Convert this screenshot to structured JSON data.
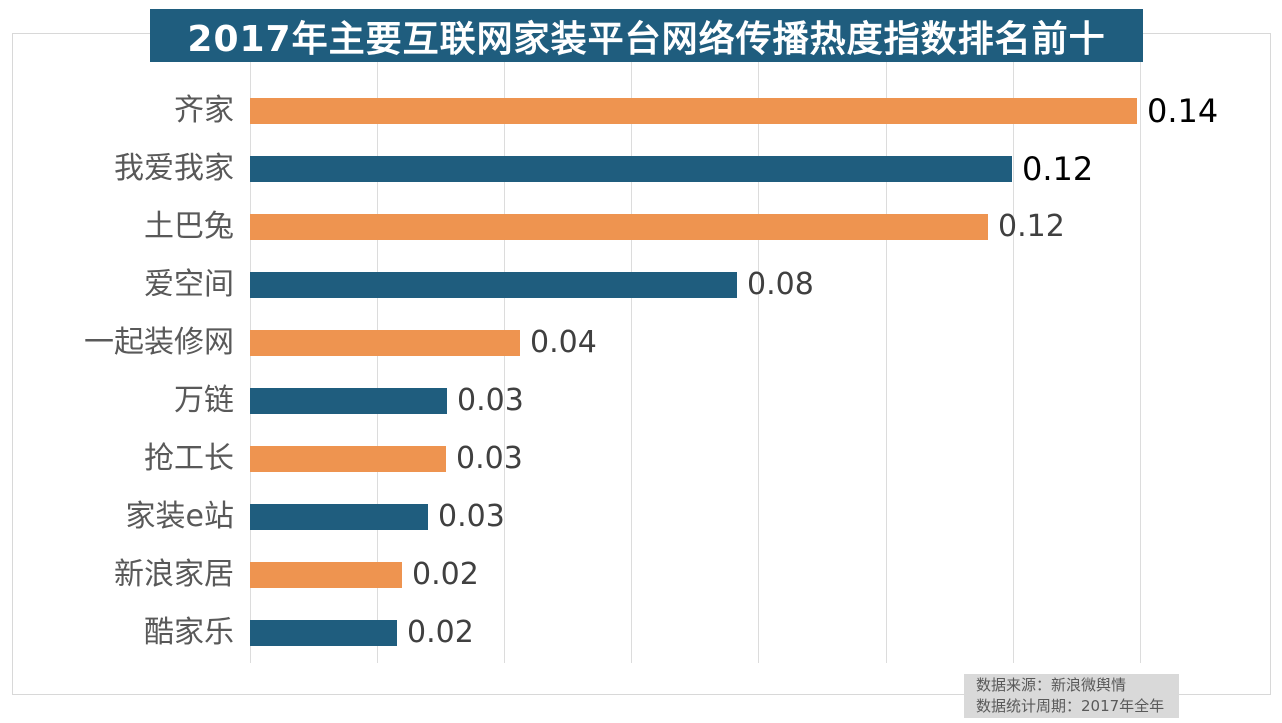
{
  "title": "2017年主要互联网家装平台网络传播热度指数排名前十",
  "chart_data": {
    "type": "bar",
    "orientation": "horizontal",
    "title": "2017年主要互联网家装平台网络传播热度指数排名前十",
    "categories": [
      "齐家",
      "我爱我家",
      "土巴兔",
      "爱空间",
      "一起装修网",
      "万链",
      "抢工长",
      "家装e站",
      "新浪家居",
      "酷家乐"
    ],
    "values": [
      0.14,
      0.12,
      0.12,
      0.08,
      0.04,
      0.03,
      0.03,
      0.03,
      0.02,
      0.02
    ],
    "values_precise": [
      0.1396,
      0.1199,
      0.1161,
      0.0766,
      0.0425,
      0.031,
      0.0309,
      0.028,
      0.0239,
      0.0231
    ],
    "value_labels": [
      "0.14",
      "0.12",
      "0.12",
      "0.08",
      "0.04",
      "0.03",
      "0.03",
      "0.03",
      "0.02",
      "0.02"
    ],
    "emphasized_label_count": 2,
    "xlim": [
      0,
      0.16
    ],
    "gridline_step": 0.02,
    "gridline_count": 8,
    "legend": "none",
    "xlabel": "",
    "ylabel": "",
    "bar_colors_alternate": [
      "#ee9450",
      "#1f5d7e"
    ]
  },
  "footer": {
    "source_line": "数据来源：新浪微舆情",
    "period_line": "数据统计周期：2017年全年"
  },
  "colors": {
    "orange": "#ee9450",
    "blue": "#1f5d7e",
    "title_bg": "#1f5d7e",
    "title_text": "#ffffff",
    "category_label": "#595959",
    "value_label_emphasis": "#000000",
    "value_label_normal": "#404040",
    "gridline": "#dcdcdc",
    "border": "#d8d8d8",
    "footer_bg": "#d9d9d9",
    "footer_text": "#595959"
  }
}
